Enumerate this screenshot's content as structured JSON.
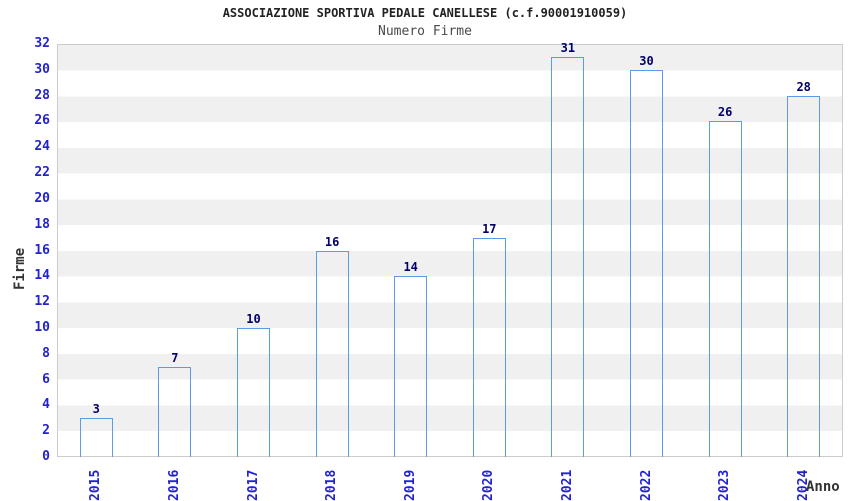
{
  "header": {
    "title": "ASSOCIAZIONE SPORTIVA PEDALE CANELLESE (c.f.90001910059)",
    "subtitle": "Numero Firme"
  },
  "chart_data": {
    "type": "bar",
    "title": "ASSOCIAZIONE SPORTIVA PEDALE CANELLESE (c.f.90001910059)",
    "subtitle": "Numero Firme",
    "categories": [
      "2015",
      "2016",
      "2017",
      "2018",
      "2019",
      "2020",
      "2021",
      "2022",
      "2023",
      "2024"
    ],
    "values": [
      3,
      7,
      10,
      16,
      14,
      17,
      31,
      30,
      26,
      28
    ],
    "xlabel": "Anno",
    "ylabel": "Firme",
    "ylim": [
      0,
      32
    ],
    "yticks": [
      0,
      2,
      4,
      6,
      8,
      10,
      12,
      14,
      16,
      18,
      20,
      22,
      24,
      26,
      28,
      30,
      32
    ],
    "grid": "alternating horizontal bands every 2 units",
    "legend_position": "none",
    "colors": {
      "bar_dark": "#23237a",
      "bar_highlight": "#9dabdf",
      "bar_border": "#5b9ce8",
      "tick_label": "#2323cd",
      "value_label": "#00006b",
      "band_gray": "#f0f0f0",
      "band_white": "#ffffff",
      "plot_border": "#cccccc",
      "title_color": "#222222",
      "subtitle_color": "#4a4a4a",
      "axis_title_color": "#333333"
    }
  }
}
